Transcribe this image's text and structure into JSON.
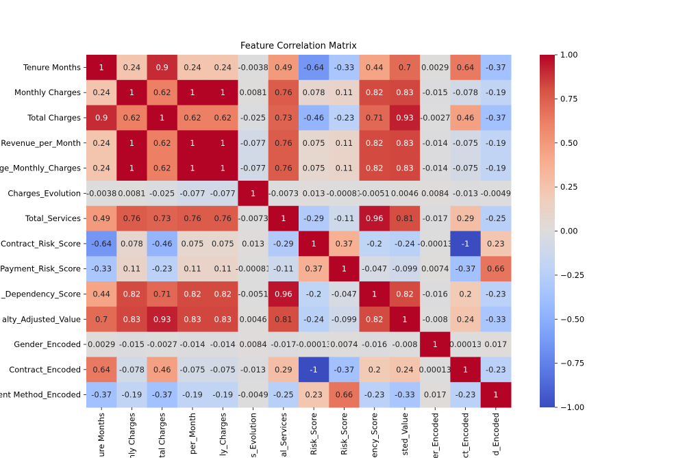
{
  "chart_data": {
    "type": "heatmap",
    "title": "Feature Correlation Matrix",
    "labels": [
      "Tenure Months",
      "Monthly Charges",
      "Total Charges",
      "Revenue_per_Month",
      "ge_Monthly_Charges",
      "Charges_Evolution",
      "Total_Services",
      "Contract_Risk_Score",
      "Payment_Risk_Score",
      "_Dependency_Score",
      "alty_Adjusted_Value",
      "Gender_Encoded",
      "Contract_Encoded",
      "ent Method_Encoded"
    ],
    "x_labels": [
      "ure Months",
      "nly Charges",
      "tal Charges",
      "per_Month",
      "ly_Charges",
      "s_Evolution",
      "al_Services",
      "Risk_Score",
      "Risk_Score",
      "ency_Score",
      "sted_Value",
      "er_Encoded",
      "ct_Encoded",
      "d_Encoded"
    ],
    "values": [
      [
        "1",
        "0.24",
        "0.9",
        "0.24",
        "0.24",
        "-0.0038",
        "0.49",
        "-0.64",
        "-0.33",
        "0.44",
        "0.7",
        "0.0029",
        "0.64",
        "-0.37"
      ],
      [
        "0.24",
        "1",
        "0.62",
        "1",
        "1",
        "0.0081",
        "0.76",
        "0.078",
        "0.11",
        "0.82",
        "0.83",
        "-0.015",
        "-0.078",
        "-0.19"
      ],
      [
        "0.9",
        "0.62",
        "1",
        "0.62",
        "0.62",
        "-0.025",
        "0.73",
        "-0.46",
        "-0.23",
        "0.71",
        "0.93",
        "-0.0027",
        "0.46",
        "-0.37"
      ],
      [
        "0.24",
        "1",
        "0.62",
        "1",
        "1",
        "-0.077",
        "0.76",
        "0.075",
        "0.11",
        "0.82",
        "0.83",
        "-0.014",
        "-0.075",
        "-0.19"
      ],
      [
        "0.24",
        "1",
        "0.62",
        "1",
        "1",
        "-0.077",
        "0.76",
        "0.075",
        "0.11",
        "0.82",
        "0.83",
        "-0.014",
        "-0.075",
        "-0.19"
      ],
      [
        "-0.0038",
        "0.0081",
        "-0.025",
        "-0.077",
        "-0.077",
        "1",
        "-0.0073",
        "0.013",
        "-0.00081",
        "-0.0051",
        "0.0046",
        "0.0084",
        "-0.013",
        "-0.0049"
      ],
      [
        "0.49",
        "0.76",
        "0.73",
        "0.76",
        "0.76",
        "-0.0073",
        "1",
        "-0.29",
        "-0.11",
        "0.96",
        "0.81",
        "-0.017",
        "0.29",
        "-0.25"
      ],
      [
        "-0.64",
        "0.078",
        "-0.46",
        "0.075",
        "0.075",
        "0.013",
        "-0.29",
        "1",
        "0.37",
        "-0.2",
        "-0.24",
        "-0.00013",
        "-1",
        "0.23"
      ],
      [
        "-0.33",
        "0.11",
        "-0.23",
        "0.11",
        "0.11",
        "-0.00081",
        "-0.11",
        "0.37",
        "1",
        "-0.047",
        "-0.099",
        "0.0074",
        "-0.37",
        "0.66"
      ],
      [
        "0.44",
        "0.82",
        "0.71",
        "0.82",
        "0.82",
        "-0.0051",
        "0.96",
        "-0.2",
        "-0.047",
        "1",
        "0.82",
        "-0.016",
        "0.2",
        "-0.23"
      ],
      [
        "0.7",
        "0.83",
        "0.93",
        "0.83",
        "0.83",
        "0.0046",
        "0.81",
        "-0.24",
        "-0.099",
        "0.82",
        "1",
        "-0.008",
        "0.24",
        "-0.33"
      ],
      [
        "0.0029",
        "-0.015",
        "-0.0027",
        "-0.014",
        "-0.014",
        "0.0084",
        "-0.017",
        "-0.00013",
        "0.0074",
        "-0.016",
        "-0.008",
        "1",
        "0.00013",
        "0.017"
      ],
      [
        "0.64",
        "-0.078",
        "0.46",
        "-0.075",
        "-0.075",
        "-0.013",
        "0.29",
        "-1",
        "-0.37",
        "0.2",
        "0.24",
        "0.00013",
        "1",
        "-0.23"
      ],
      [
        "-0.37",
        "-0.19",
        "-0.37",
        "-0.19",
        "-0.19",
        "-0.0049",
        "-0.25",
        "0.23",
        "0.66",
        "-0.23",
        "-0.33",
        "0.017",
        "-0.23",
        "1"
      ]
    ],
    "colormap": "coolwarm",
    "vmin": -1,
    "vmax": 1,
    "colorbar_ticks": [
      "1.00",
      "0.75",
      "0.50",
      "0.25",
      "0.00",
      "−0.25",
      "−0.50",
      "−0.75",
      "−1.00"
    ]
  }
}
